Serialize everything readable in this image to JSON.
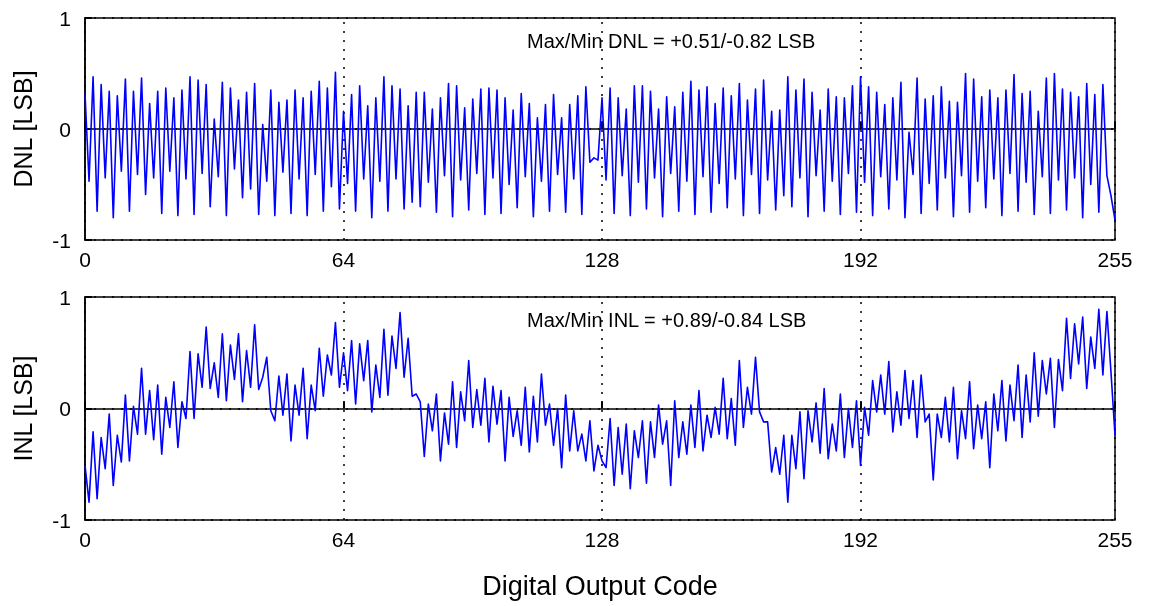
{
  "chart_data": [
    {
      "type": "line",
      "ylabel": "DNL [LSB]",
      "color": "#0000ff",
      "grid": true,
      "xlim": [
        0,
        255
      ],
      "xticks": [
        0,
        64,
        128,
        192,
        255
      ],
      "ylim": [
        -1,
        1
      ],
      "yticks": [
        -1,
        0,
        1
      ],
      "annotations": [
        "Max/Min DNL = +0.51/-0.82 LSB"
      ],
      "x": [
        0,
        1,
        2,
        3,
        4,
        5,
        6,
        7,
        8,
        9,
        10,
        11,
        12,
        13,
        14,
        15,
        16,
        17,
        18,
        19,
        20,
        21,
        22,
        23,
        24,
        25,
        26,
        27,
        28,
        29,
        30,
        31,
        32,
        33,
        34,
        35,
        36,
        37,
        38,
        39,
        40,
        41,
        42,
        43,
        44,
        45,
        46,
        47,
        48,
        49,
        50,
        51,
        52,
        53,
        54,
        55,
        56,
        57,
        58,
        59,
        60,
        61,
        62,
        63,
        64,
        65,
        66,
        67,
        68,
        69,
        70,
        71,
        72,
        73,
        74,
        75,
        76,
        77,
        78,
        79,
        80,
        81,
        82,
        83,
        84,
        85,
        86,
        87,
        88,
        89,
        90,
        91,
        92,
        93,
        94,
        95,
        96,
        97,
        98,
        99,
        100,
        101,
        102,
        103,
        104,
        105,
        106,
        107,
        108,
        109,
        110,
        111,
        112,
        113,
        114,
        115,
        116,
        117,
        118,
        119,
        120,
        121,
        122,
        123,
        124,
        125,
        126,
        127,
        128,
        129,
        130,
        131,
        132,
        133,
        134,
        135,
        136,
        137,
        138,
        139,
        140,
        141,
        142,
        143,
        144,
        145,
        146,
        147,
        148,
        149,
        150,
        151,
        152,
        153,
        154,
        155,
        156,
        157,
        158,
        159,
        160,
        161,
        162,
        163,
        164,
        165,
        166,
        167,
        168,
        169,
        170,
        171,
        172,
        173,
        174,
        175,
        176,
        177,
        178,
        179,
        180,
        181,
        182,
        183,
        184,
        185,
        186,
        187,
        188,
        189,
        190,
        191,
        192,
        193,
        194,
        195,
        196,
        197,
        198,
        199,
        200,
        201,
        202,
        203,
        204,
        205,
        206,
        207,
        208,
        209,
        210,
        211,
        212,
        213,
        214,
        215,
        216,
        217,
        218,
        219,
        220,
        221,
        222,
        223,
        224,
        225,
        226,
        227,
        228,
        229,
        230,
        231,
        232,
        233,
        234,
        235,
        236,
        237,
        238,
        239,
        240,
        241,
        242,
        243,
        244,
        245,
        246,
        247,
        248,
        249,
        250,
        251,
        252,
        253,
        254,
        255
      ],
      "values": [
        0.32,
        -0.47,
        0.47,
        -0.74,
        0.4,
        -0.44,
        0.34,
        -0.8,
        0.3,
        -0.38,
        0.45,
        -0.74,
        0.34,
        -0.41,
        0.46,
        -0.59,
        0.23,
        -0.44,
        0.34,
        -0.76,
        0.37,
        -0.38,
        0.28,
        -0.78,
        0.35,
        -0.45,
        0.47,
        -0.77,
        0.44,
        -0.4,
        0.4,
        -0.7,
        0.09,
        -0.43,
        0.42,
        -0.78,
        0.37,
        -0.36,
        0.26,
        -0.62,
        0.33,
        -0.54,
        0.41,
        -0.77,
        0.04,
        -0.47,
        0.35,
        -0.78,
        0.24,
        -0.39,
        0.26,
        -0.76,
        0.35,
        -0.45,
        0.28,
        -0.78,
        0.34,
        -0.41,
        0.43,
        -0.74,
        0.37,
        -0.52,
        0.51,
        -0.72,
        0.16,
        -0.49,
        0.31,
        -0.74,
        0.39,
        -0.45,
        0.21,
        -0.8,
        0.28,
        -0.47,
        0.47,
        -0.74,
        0.39,
        -0.45,
        0.36,
        -0.72,
        0.21,
        -0.66,
        0.33,
        -0.7,
        0.33,
        -0.48,
        0.18,
        -0.75,
        0.28,
        -0.42,
        0.41,
        -0.79,
        0.39,
        -0.46,
        0.19,
        -0.73,
        0.27,
        -0.4,
        0.36,
        -0.77,
        0.37,
        -0.44,
        0.35,
        -0.76,
        0.28,
        -0.5,
        0.17,
        -0.71,
        0.32,
        -0.43,
        0.23,
        -0.79,
        0.1,
        -0.47,
        0.22,
        -0.74,
        0.31,
        -0.41,
        0.1,
        -0.75,
        0.22,
        -0.45,
        0.3,
        -0.77,
        0.38,
        -0.3,
        -0.26,
        -0.28,
        0.28,
        -0.46,
        0.37,
        -0.76,
        0.28,
        -0.42,
        0.18,
        -0.78,
        0.39,
        -0.48,
        0.39,
        -0.72,
        0.34,
        -0.44,
        0.18,
        -0.79,
        0.29,
        -0.4,
        0.2,
        -0.74,
        0.33,
        -0.47,
        0.43,
        -0.77,
        0.35,
        -0.43,
        0.38,
        -0.75,
        0.23,
        -0.49,
        0.37,
        -0.71,
        0.3,
        -0.45,
        0.41,
        -0.78,
        0.26,
        -0.41,
        0.36,
        -0.76,
        0.44,
        -0.46,
        0.16,
        -0.73,
        0.17,
        -0.6,
        0.47,
        -0.7,
        0.35,
        -0.44,
        0.45,
        -0.79,
        0.33,
        -0.42,
        0.17,
        -0.74,
        0.36,
        -0.47,
        0.29,
        -0.77,
        0.28,
        -0.4,
        0.39,
        -0.75,
        0.47,
        -0.48,
        0.38,
        -0.78,
        0.33,
        -0.43,
        0.22,
        -0.72,
        0.28,
        -0.46,
        0.42,
        -0.8,
        -0.03,
        -0.41,
        0.46,
        -0.76,
        0.27,
        -0.49,
        0.3,
        -0.73,
        0.38,
        -0.44,
        0.25,
        -0.79,
        0.24,
        -0.42,
        0.5,
        -0.75,
        0.45,
        -0.47,
        0.29,
        -0.71,
        0.35,
        -0.45,
        0.28,
        -0.78,
        0.35,
        -0.4,
        0.49,
        -0.74,
        0.32,
        -0.48,
        0.34,
        -0.77,
        0.16,
        -0.43,
        0.46,
        -0.76,
        0.5,
        -0.46,
        0.36,
        -0.73,
        0.33,
        -0.44,
        0.29,
        -0.8,
        0.41,
        -0.5,
        0.31,
        -0.75,
        0.4,
        -0.42,
        -0.6,
        -0.82
      ]
    },
    {
      "type": "line",
      "ylabel": "INL [LSB]",
      "xlabel": "Digital Output Code",
      "color": "#0000ff",
      "grid": true,
      "xlim": [
        0,
        255
      ],
      "xticks": [
        0,
        64,
        128,
        192,
        255
      ],
      "ylim": [
        -1,
        1
      ],
      "yticks": [
        -1,
        0,
        1
      ],
      "annotations": [
        "Max/Min INL = +0.89/-0.84 LSB"
      ],
      "x": [
        0,
        1,
        2,
        3,
        4,
        5,
        6,
        7,
        8,
        9,
        10,
        11,
        12,
        13,
        14,
        15,
        16,
        17,
        18,
        19,
        20,
        21,
        22,
        23,
        24,
        25,
        26,
        27,
        28,
        29,
        30,
        31,
        32,
        33,
        34,
        35,
        36,
        37,
        38,
        39,
        40,
        41,
        42,
        43,
        44,
        45,
        46,
        47,
        48,
        49,
        50,
        51,
        52,
        53,
        54,
        55,
        56,
        57,
        58,
        59,
        60,
        61,
        62,
        63,
        64,
        65,
        66,
        67,
        68,
        69,
        70,
        71,
        72,
        73,
        74,
        75,
        76,
        77,
        78,
        79,
        80,
        81,
        82,
        83,
        84,
        85,
        86,
        87,
        88,
        89,
        90,
        91,
        92,
        93,
        94,
        95,
        96,
        97,
        98,
        99,
        100,
        101,
        102,
        103,
        104,
        105,
        106,
        107,
        108,
        109,
        110,
        111,
        112,
        113,
        114,
        115,
        116,
        117,
        118,
        119,
        120,
        121,
        122,
        123,
        124,
        125,
        126,
        127,
        128,
        129,
        130,
        131,
        132,
        133,
        134,
        135,
        136,
        137,
        138,
        139,
        140,
        141,
        142,
        143,
        144,
        145,
        146,
        147,
        148,
        149,
        150,
        151,
        152,
        153,
        154,
        155,
        156,
        157,
        158,
        159,
        160,
        161,
        162,
        163,
        164,
        165,
        166,
        167,
        168,
        169,
        170,
        171,
        172,
        173,
        174,
        175,
        176,
        177,
        178,
        179,
        180,
        181,
        182,
        183,
        184,
        185,
        186,
        187,
        188,
        189,
        190,
        191,
        192,
        193,
        194,
        195,
        196,
        197,
        198,
        199,
        200,
        201,
        202,
        203,
        204,
        205,
        206,
        207,
        208,
        209,
        210,
        211,
        212,
        213,
        214,
        215,
        216,
        217,
        218,
        219,
        220,
        221,
        222,
        223,
        224,
        225,
        226,
        227,
        228,
        229,
        230,
        231,
        232,
        233,
        234,
        235,
        236,
        237,
        238,
        239,
        240,
        241,
        242,
        243,
        244,
        245,
        246,
        247,
        248,
        249,
        250,
        251,
        252,
        253,
        254,
        255
      ],
      "values": [
        -0.51,
        -0.84,
        -0.21,
        -0.81,
        -0.26,
        -0.54,
        -0.05,
        -0.69,
        -0.24,
        -0.48,
        0.12,
        -0.47,
        0.02,
        -0.23,
        0.36,
        -0.23,
        0.16,
        -0.28,
        0.21,
        -0.41,
        0.1,
        -0.17,
        0.24,
        -0.35,
        0.06,
        -0.09,
        0.51,
        -0.09,
        0.49,
        0.19,
        0.73,
        0.18,
        0.41,
        0.1,
        0.67,
        0.07,
        0.57,
        0.26,
        0.67,
        0.06,
        0.52,
        0.19,
        0.75,
        0.17,
        0.28,
        0.46,
        -0.02,
        -0.11,
        0.29,
        -0.06,
        0.31,
        -0.29,
        0.21,
        -0.06,
        0.36,
        -0.27,
        0.21,
        -0.02,
        0.54,
        0.11,
        0.48,
        0.3,
        0.77,
        0.19,
        0.5,
        0.16,
        0.61,
        0.04,
        0.58,
        0.25,
        0.61,
        -0.03,
        0.39,
        0.1,
        0.71,
        0.12,
        0.65,
        0.36,
        0.86,
        0.28,
        0.63,
        0.11,
        0.13,
        0.06,
        -0.43,
        0.04,
        -0.2,
        0.13,
        -0.47,
        -0.04,
        -0.32,
        0.24,
        -0.35,
        0.15,
        -0.11,
        0.43,
        -0.17,
        0.17,
        -0.15,
        0.27,
        -0.3,
        0.2,
        -0.14,
        0.16,
        -0.47,
        0.1,
        -0.25,
        -0.02,
        -0.33,
        0.19,
        -0.39,
        0.11,
        -0.3,
        0.31,
        -0.15,
        0.04,
        -0.33,
        0.0,
        -0.53,
        0.12,
        -0.38,
        -0.02,
        -0.38,
        -0.23,
        -0.47,
        -0.11,
        -0.56,
        -0.33,
        -0.47,
        -0.53,
        -0.09,
        -0.69,
        -0.17,
        -0.59,
        -0.14,
        -0.72,
        -0.2,
        -0.44,
        -0.11,
        -0.67,
        -0.12,
        -0.44,
        0.03,
        -0.32,
        -0.11,
        -0.69,
        0.07,
        -0.44,
        -0.12,
        -0.41,
        0.03,
        -0.35,
        0.16,
        -0.38,
        -0.06,
        -0.26,
        0.01,
        -0.23,
        0.27,
        -0.27,
        0.09,
        -0.33,
        0.43,
        -0.17,
        0.19,
        -0.05,
        0.46,
        -0.03,
        -0.12,
        -0.12,
        -0.57,
        -0.35,
        -0.59,
        -0.24,
        -0.84,
        -0.24,
        -0.54,
        -0.03,
        -0.63,
        -0.02,
        -0.3,
        0.05,
        -0.4,
        0.18,
        -0.45,
        -0.14,
        -0.38,
        0.13,
        -0.44,
        0.0,
        -0.35,
        0.07,
        -0.51,
        0.01,
        -0.24,
        0.25,
        -0.03,
        0.3,
        -0.05,
        0.42,
        -0.21,
        0.15,
        -0.15,
        0.34,
        -0.09,
        0.25,
        -0.26,
        0.3,
        -0.12,
        -0.05,
        -0.64,
        -0.05,
        -0.26,
        0.1,
        -0.3,
        0.19,
        -0.45,
        -0.02,
        -0.27,
        0.24,
        -0.36,
        0.03,
        -0.27,
        0.06,
        -0.53,
        0.13,
        -0.2,
        0.25,
        -0.29,
        0.21,
        -0.11,
        0.39,
        -0.26,
        0.3,
        -0.12,
        0.5,
        -0.07,
        0.43,
        0.13,
        0.45,
        -0.17,
        0.44,
        0.16,
        0.81,
        0.27,
        0.76,
        0.4,
        0.82,
        0.18,
        0.64,
        0.36,
        0.89,
        0.3,
        0.87,
        0.33,
        -0.24
      ]
    }
  ]
}
